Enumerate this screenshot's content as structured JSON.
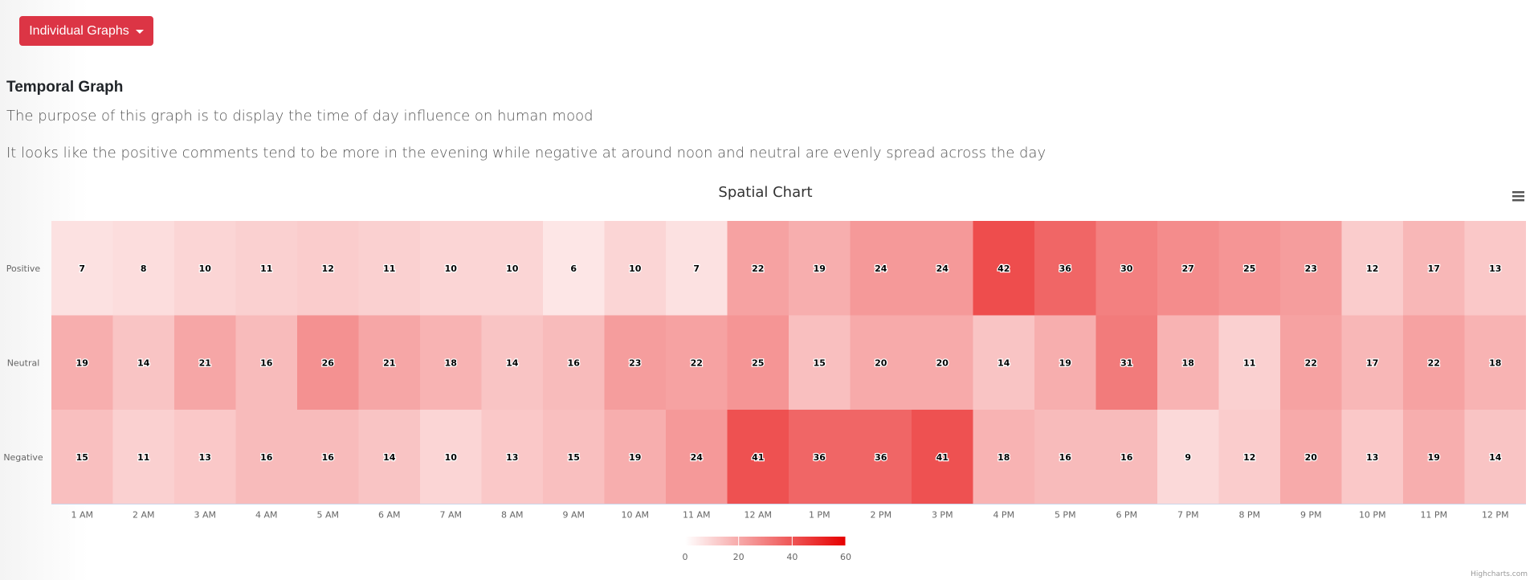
{
  "dropdown": {
    "label": "Individual Graphs"
  },
  "section": {
    "title": "Temporal Graph",
    "description1": "The purpose of this graph is to display the time of day influence on human mood",
    "description2": "It looks like the positive comments tend to be more in the evening while negative at around noon and neutral are evenly spread across the day"
  },
  "chart_data": {
    "type": "heatmap",
    "title": "Spatial Chart",
    "x_categories": [
      "1 AM",
      "2 AM",
      "3 AM",
      "4 AM",
      "5 AM",
      "6 AM",
      "7 AM",
      "8 AM",
      "9 AM",
      "10 AM",
      "11 AM",
      "12 AM",
      "1 PM",
      "2 PM",
      "3 PM",
      "4 PM",
      "5 PM",
      "6 PM",
      "7 PM",
      "8 PM",
      "9 PM",
      "10 PM",
      "11 PM",
      "12 PM"
    ],
    "y_categories": [
      "Positive",
      "Neutral",
      "Negative"
    ],
    "values": [
      [
        7,
        8,
        10,
        11,
        12,
        11,
        10,
        10,
        6,
        10,
        7,
        22,
        19,
        24,
        24,
        42,
        36,
        30,
        27,
        25,
        23,
        12,
        17,
        13
      ],
      [
        19,
        14,
        21,
        16,
        26,
        21,
        18,
        14,
        16,
        23,
        22,
        25,
        15,
        20,
        20,
        14,
        19,
        31,
        18,
        11,
        22,
        17,
        22,
        18
      ],
      [
        15,
        11,
        13,
        16,
        16,
        14,
        10,
        13,
        15,
        19,
        24,
        41,
        36,
        36,
        41,
        18,
        16,
        16,
        9,
        12,
        20,
        13,
        19,
        14
      ]
    ],
    "color_axis": {
      "min": 0,
      "max": 60,
      "min_color": "#ffffff",
      "max_color": "#e60000",
      "ticks": [
        0,
        20,
        40,
        60
      ]
    },
    "legend_placement": "bottom-center",
    "credits": "Highcharts.com"
  },
  "icons": {
    "menu": "hamburger-menu-icon"
  }
}
